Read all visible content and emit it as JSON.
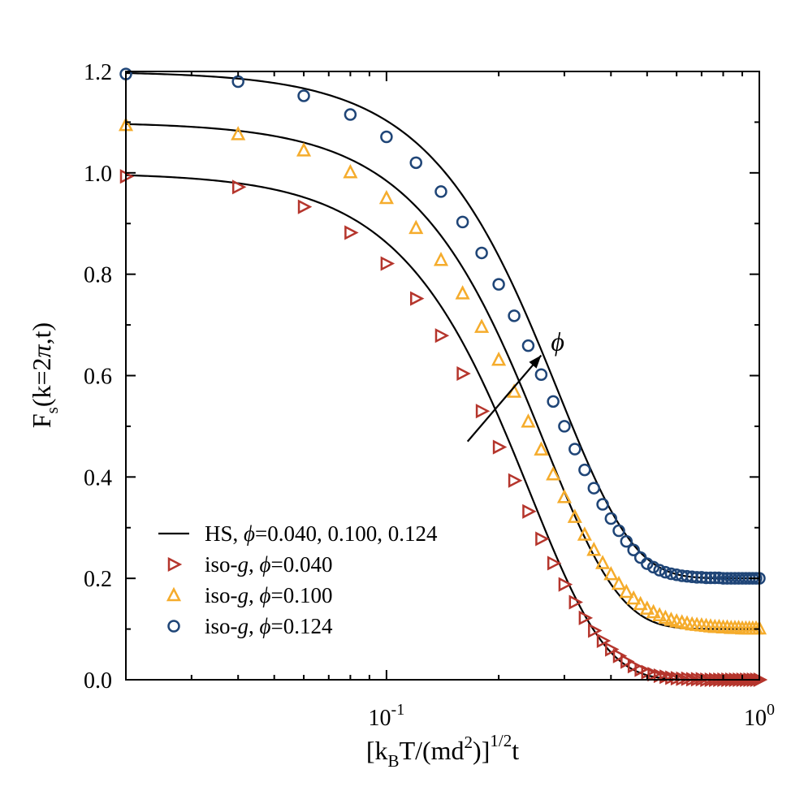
{
  "chart_data": {
    "type": "line",
    "title": "",
    "xlabel": "[k_B T/(md^2)]^{1/2} t",
    "ylabel": "F_s(k=2π,t)",
    "xscale": "log",
    "xlim": [
      0.02,
      1.0
    ],
    "ylim": [
      0.0,
      1.2
    ],
    "x_major_ticks": [
      {
        "value": 0.1,
        "base": "10",
        "exp": "-1"
      },
      {
        "value": 1.0,
        "base": "10",
        "exp": "0"
      }
    ],
    "y_ticks": [
      "0.0",
      "0.2",
      "0.4",
      "0.6",
      "0.8",
      "1.0",
      "1.2"
    ],
    "legend_position": "lower-left",
    "legend": [
      {
        "kind": "line",
        "text_pre": "HS, ",
        "phi_symbol": "ϕ",
        "text_post": "=0.040, 0.100, 0.124"
      },
      {
        "kind": "triangle-right",
        "text_pre": "iso-",
        "g_symbol": "g",
        "text_mid": ", ",
        "phi_symbol": "ϕ",
        "text_post": "=0.040"
      },
      {
        "kind": "triangle-up",
        "text_pre": "iso-",
        "g_symbol": "g",
        "text_mid": ", ",
        "phi_symbol": "ϕ",
        "text_post": "=0.100"
      },
      {
        "kind": "circle",
        "text_pre": "iso-",
        "g_symbol": "g",
        "text_mid": ", ",
        "phi_symbol": "ϕ",
        "text_post": "=0.124"
      }
    ],
    "annotation": {
      "text": "ϕ",
      "arrow_from": [
        0.165,
        0.47
      ],
      "arrow_to": [
        0.26,
        0.64
      ]
    },
    "series": [
      {
        "name": "HS, ϕ=0.040",
        "style": "line",
        "color": "#000000",
        "offset": 0.0,
        "tau": 0.243,
        "beta": 2.15,
        "amplitude": 1.0
      },
      {
        "name": "HS, ϕ=0.100",
        "style": "line",
        "color": "#000000",
        "offset": 0.1,
        "tau": 0.265,
        "beta": 2.15,
        "amplitude": 1.0
      },
      {
        "name": "HS, ϕ=0.124",
        "style": "line",
        "color": "#000000",
        "offset": 0.2,
        "tau": 0.289,
        "beta": 2.15,
        "amplitude": 1.0
      },
      {
        "name": "iso-g, ϕ=0.040",
        "style": "marker",
        "marker": "triangle-right",
        "color": "#b5352c",
        "x": [
          0.02,
          0.04,
          0.06,
          0.08,
          0.1,
          0.12,
          0.14,
          0.16,
          0.18,
          0.2,
          0.22,
          0.24,
          0.26,
          0.28,
          0.3,
          0.32,
          0.34,
          0.36,
          0.38,
          0.4,
          0.42,
          0.44,
          0.46,
          0.48,
          0.5,
          0.52,
          0.54,
          0.56,
          0.58,
          0.6,
          0.62,
          0.64,
          0.66,
          0.68,
          0.7,
          0.72,
          0.74,
          0.76,
          0.78,
          0.8,
          0.82,
          0.84,
          0.86,
          0.88,
          0.9,
          0.92,
          0.94,
          0.96,
          0.98,
          1.0
        ],
        "y": [
          0.993,
          0.972,
          0.933,
          0.882,
          0.821,
          0.752,
          0.679,
          0.604,
          0.53,
          0.459,
          0.393,
          0.332,
          0.278,
          0.23,
          0.188,
          0.153,
          0.122,
          0.097,
          0.077,
          0.06,
          0.047,
          0.036,
          0.027,
          0.02,
          0.015,
          0.011,
          0.008,
          0.006,
          0.004,
          0.003,
          0.002,
          0.002,
          0.001,
          0.001,
          0.001,
          0.0,
          0.0,
          0.0,
          0.0,
          0.0,
          0.0,
          0.0,
          0.0,
          0.0,
          0.0,
          0.0,
          0.0,
          0.0,
          0.0,
          0.0
        ]
      },
      {
        "name": "iso-g, ϕ=0.100",
        "style": "marker",
        "marker": "triangle-up",
        "color": "#f5ac2c",
        "x": [
          0.02,
          0.04,
          0.06,
          0.08,
          0.1,
          0.12,
          0.14,
          0.16,
          0.18,
          0.2,
          0.22,
          0.24,
          0.26,
          0.28,
          0.3,
          0.32,
          0.34,
          0.36,
          0.38,
          0.4,
          0.42,
          0.44,
          0.46,
          0.48,
          0.5,
          0.52,
          0.54,
          0.56,
          0.58,
          0.6,
          0.62,
          0.64,
          0.66,
          0.68,
          0.7,
          0.72,
          0.74,
          0.76,
          0.78,
          0.8,
          0.82,
          0.84,
          0.86,
          0.88,
          0.9,
          0.92,
          0.94,
          0.96,
          0.98,
          1.0
        ],
        "y": [
          1.094,
          1.076,
          1.044,
          1.001,
          0.95,
          0.891,
          0.828,
          0.762,
          0.696,
          0.631,
          0.568,
          0.509,
          0.454,
          0.405,
          0.36,
          0.321,
          0.286,
          0.256,
          0.23,
          0.208,
          0.189,
          0.173,
          0.16,
          0.149,
          0.14,
          0.133,
          0.127,
          0.122,
          0.118,
          0.115,
          0.113,
          0.111,
          0.109,
          0.108,
          0.107,
          0.106,
          0.105,
          0.104,
          0.104,
          0.103,
          0.103,
          0.102,
          0.102,
          0.102,
          0.101,
          0.101,
          0.101,
          0.101,
          0.101,
          0.101
        ]
      },
      {
        "name": "iso-g, ϕ=0.124",
        "style": "marker",
        "marker": "circle",
        "color": "#1f4577",
        "x": [
          0.02,
          0.04,
          0.06,
          0.08,
          0.1,
          0.12,
          0.14,
          0.16,
          0.18,
          0.2,
          0.22,
          0.24,
          0.26,
          0.28,
          0.3,
          0.32,
          0.34,
          0.36,
          0.38,
          0.4,
          0.42,
          0.44,
          0.46,
          0.48,
          0.5,
          0.52,
          0.54,
          0.56,
          0.58,
          0.6,
          0.62,
          0.64,
          0.66,
          0.68,
          0.7,
          0.72,
          0.74,
          0.76,
          0.78,
          0.8,
          0.82,
          0.84,
          0.86,
          0.88,
          0.9,
          0.92,
          0.94,
          0.96,
          0.98,
          1.0
        ],
        "y": [
          1.195,
          1.18,
          1.152,
          1.115,
          1.071,
          1.02,
          0.963,
          0.903,
          0.842,
          0.78,
          0.718,
          0.659,
          0.602,
          0.549,
          0.5,
          0.455,
          0.414,
          0.378,
          0.346,
          0.318,
          0.294,
          0.273,
          0.256,
          0.241,
          0.229,
          0.222,
          0.216,
          0.212,
          0.209,
          0.207,
          0.205,
          0.204,
          0.203,
          0.202,
          0.202,
          0.201,
          0.201,
          0.201,
          0.201,
          0.2,
          0.2,
          0.2,
          0.2,
          0.2,
          0.2,
          0.2,
          0.2,
          0.2,
          0.2,
          0.2
        ]
      }
    ]
  }
}
